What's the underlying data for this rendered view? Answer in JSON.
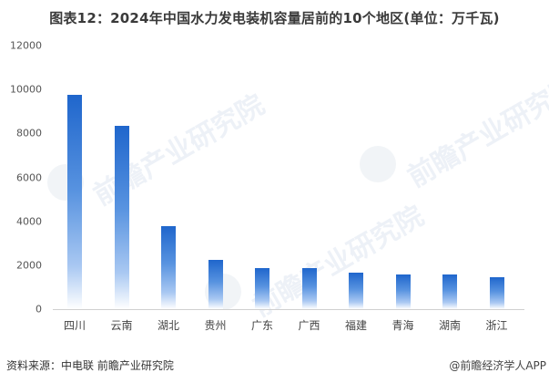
{
  "title": "图表12：2024年中国水力发电装机容量居前的10个地区(单位：万千瓦)",
  "source": "资料来源：中电联 前瞻产业研究院",
  "credit": "@前瞻经济学人APP",
  "watermark": "前瞻产业研究院",
  "colors": {
    "bar_top": "#1f66cc",
    "bar_bottom": "#ffffff",
    "axis": "#d0d0d0"
  },
  "chart_data": {
    "type": "bar",
    "title": "图表12：2024年中国水力发电装机容量居前的10个地区(单位：万千瓦)",
    "xlabel": "",
    "ylabel": "万千瓦",
    "categories": [
      "四川",
      "云南",
      "湖北",
      "贵州",
      "广东",
      "广西",
      "福建",
      "青海",
      "湖南",
      "浙江"
    ],
    "values": [
      9760,
      8350,
      3780,
      2240,
      1870,
      1870,
      1660,
      1580,
      1580,
      1450
    ],
    "ylim": [
      0,
      12000
    ],
    "yticks": [
      "12000",
      "10000",
      "8000",
      "6000",
      "4000",
      "2000",
      "0"
    ],
    "grid": false,
    "legend": null
  }
}
